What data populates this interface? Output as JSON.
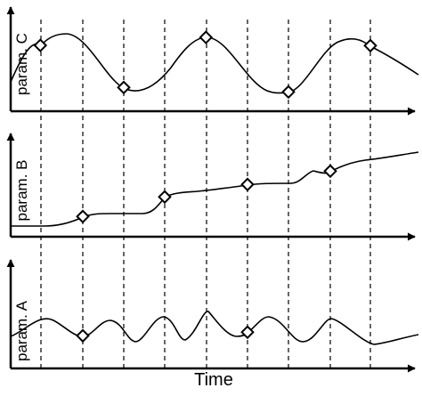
{
  "figure": {
    "x_axis_label": "Time",
    "panels": [
      {
        "id": "c",
        "label": "param. C"
      },
      {
        "id": "b",
        "label": "param. B"
      },
      {
        "id": "a",
        "label": "param. A"
      }
    ]
  }
}
